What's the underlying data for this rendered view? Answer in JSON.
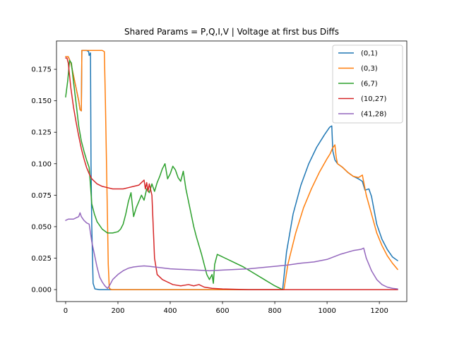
{
  "chart_data": {
    "type": "line",
    "title": "Shared Params =  P,Q,I,V | Voltage at first bus Diffs",
    "xlabel": "",
    "ylabel": "",
    "xlim": [
      -35,
      1305
    ],
    "ylim": [
      -0.0095,
      0.1975
    ],
    "xticks": [
      0,
      200,
      400,
      600,
      800,
      1000,
      1200
    ],
    "xtick_labels": [
      "0",
      "200",
      "400",
      "600",
      "800",
      "1000",
      "1200"
    ],
    "yticks": [
      0.0,
      0.025,
      0.05,
      0.075,
      0.1,
      0.125,
      0.15,
      0.175
    ],
    "ytick_labels": [
      "0.000",
      "0.025",
      "0.050",
      "0.075",
      "0.100",
      "0.125",
      "0.150",
      "0.175"
    ],
    "grid": false,
    "legend_position": "upper right",
    "series": [
      {
        "name": "(0,1)",
        "color": "#1f77b4",
        "points": [
          [
            0,
            0.185
          ],
          [
            10,
            0.185
          ],
          [
            20,
            0.18
          ],
          [
            30,
            0.17
          ],
          [
            40,
            0.16
          ],
          [
            50,
            0.15
          ],
          [
            55,
            0.143
          ],
          [
            60,
            0.142
          ],
          [
            62,
            0.19
          ],
          [
            70,
            0.19
          ],
          [
            80,
            0.19
          ],
          [
            88,
            0.189
          ],
          [
            90,
            0.186
          ],
          [
            95,
            0.188
          ],
          [
            97,
            0.1
          ],
          [
            100,
            0.05
          ],
          [
            105,
            0.005
          ],
          [
            112,
            0.0005
          ],
          [
            130,
            0.0
          ],
          [
            200,
            0.0
          ],
          [
            400,
            0.0
          ],
          [
            600,
            0.0
          ],
          [
            800,
            0.0
          ],
          [
            830,
            0.0
          ],
          [
            845,
            0.03
          ],
          [
            870,
            0.06
          ],
          [
            900,
            0.083
          ],
          [
            930,
            0.1
          ],
          [
            960,
            0.113
          ],
          [
            990,
            0.123
          ],
          [
            1000,
            0.126
          ],
          [
            1010,
            0.129
          ],
          [
            1018,
            0.13
          ],
          [
            1022,
            0.11
          ],
          [
            1030,
            0.103
          ],
          [
            1040,
            0.1
          ],
          [
            1060,
            0.097
          ],
          [
            1080,
            0.093
          ],
          [
            1100,
            0.09
          ],
          [
            1120,
            0.088
          ],
          [
            1135,
            0.086
          ],
          [
            1145,
            0.079
          ],
          [
            1160,
            0.08
          ],
          [
            1170,
            0.074
          ],
          [
            1190,
            0.052
          ],
          [
            1210,
            0.04
          ],
          [
            1230,
            0.032
          ],
          [
            1250,
            0.026
          ],
          [
            1270,
            0.023
          ]
        ]
      },
      {
        "name": "(0,3)",
        "color": "#ff7f0e",
        "points": [
          [
            0,
            0.185
          ],
          [
            10,
            0.185
          ],
          [
            20,
            0.18
          ],
          [
            30,
            0.17
          ],
          [
            40,
            0.16
          ],
          [
            50,
            0.15
          ],
          [
            55,
            0.143
          ],
          [
            60,
            0.142
          ],
          [
            62,
            0.19
          ],
          [
            80,
            0.19
          ],
          [
            100,
            0.19
          ],
          [
            120,
            0.19
          ],
          [
            140,
            0.19
          ],
          [
            148,
            0.189
          ],
          [
            152,
            0.15
          ],
          [
            158,
            0.08
          ],
          [
            163,
            0.02
          ],
          [
            167,
            0.001
          ],
          [
            175,
            0.0
          ],
          [
            300,
            0.0
          ],
          [
            500,
            0.0
          ],
          [
            700,
            0.0
          ],
          [
            800,
            0.0
          ],
          [
            835,
            0.0
          ],
          [
            850,
            0.02
          ],
          [
            880,
            0.045
          ],
          [
            910,
            0.065
          ],
          [
            940,
            0.08
          ],
          [
            970,
            0.093
          ],
          [
            1000,
            0.104
          ],
          [
            1012,
            0.108
          ],
          [
            1020,
            0.112
          ],
          [
            1030,
            0.115
          ],
          [
            1035,
            0.105
          ],
          [
            1040,
            0.1
          ],
          [
            1060,
            0.097
          ],
          [
            1080,
            0.093
          ],
          [
            1100,
            0.09
          ],
          [
            1120,
            0.089
          ],
          [
            1135,
            0.091
          ],
          [
            1150,
            0.075
          ],
          [
            1170,
            0.06
          ],
          [
            1190,
            0.045
          ],
          [
            1210,
            0.035
          ],
          [
            1230,
            0.027
          ],
          [
            1250,
            0.021
          ],
          [
            1270,
            0.016
          ]
        ]
      },
      {
        "name": "(6,7)",
        "color": "#2ca02c",
        "points": [
          [
            0,
            0.153
          ],
          [
            8,
            0.166
          ],
          [
            15,
            0.182
          ],
          [
            22,
            0.18
          ],
          [
            30,
            0.165
          ],
          [
            40,
            0.148
          ],
          [
            50,
            0.13
          ],
          [
            60,
            0.118
          ],
          [
            70,
            0.11
          ],
          [
            80,
            0.103
          ],
          [
            90,
            0.097
          ],
          [
            100,
            0.068
          ],
          [
            110,
            0.06
          ],
          [
            120,
            0.054
          ],
          [
            140,
            0.048
          ],
          [
            160,
            0.045
          ],
          [
            180,
            0.045
          ],
          [
            200,
            0.046
          ],
          [
            210,
            0.048
          ],
          [
            220,
            0.052
          ],
          [
            230,
            0.06
          ],
          [
            240,
            0.07
          ],
          [
            250,
            0.077
          ],
          [
            260,
            0.058
          ],
          [
            270,
            0.065
          ],
          [
            280,
            0.07
          ],
          [
            290,
            0.075
          ],
          [
            300,
            0.071
          ],
          [
            310,
            0.08
          ],
          [
            320,
            0.077
          ],
          [
            330,
            0.084
          ],
          [
            340,
            0.078
          ],
          [
            350,
            0.085
          ],
          [
            360,
            0.09
          ],
          [
            370,
            0.096
          ],
          [
            380,
            0.1
          ],
          [
            390,
            0.088
          ],
          [
            400,
            0.092
          ],
          [
            410,
            0.098
          ],
          [
            420,
            0.095
          ],
          [
            430,
            0.089
          ],
          [
            440,
            0.086
          ],
          [
            450,
            0.094
          ],
          [
            460,
            0.08
          ],
          [
            470,
            0.07
          ],
          [
            480,
            0.06
          ],
          [
            490,
            0.05
          ],
          [
            500,
            0.042
          ],
          [
            510,
            0.035
          ],
          [
            520,
            0.028
          ],
          [
            530,
            0.02
          ],
          [
            540,
            0.012
          ],
          [
            550,
            0.008
          ],
          [
            560,
            0.012
          ],
          [
            565,
            0.005
          ],
          [
            570,
            0.02
          ],
          [
            580,
            0.028
          ],
          [
            590,
            0.027
          ],
          [
            610,
            0.025
          ],
          [
            640,
            0.022
          ],
          [
            680,
            0.018
          ],
          [
            720,
            0.013
          ],
          [
            760,
            0.008
          ],
          [
            800,
            0.003
          ],
          [
            830,
            0.0
          ]
        ]
      },
      {
        "name": "(10,27)",
        "color": "#d62728",
        "points": [
          [
            0,
            0.184
          ],
          [
            5,
            0.184
          ],
          [
            10,
            0.18
          ],
          [
            20,
            0.16
          ],
          [
            30,
            0.145
          ],
          [
            40,
            0.133
          ],
          [
            50,
            0.122
          ],
          [
            60,
            0.112
          ],
          [
            70,
            0.104
          ],
          [
            80,
            0.097
          ],
          [
            90,
            0.092
          ],
          [
            100,
            0.088
          ],
          [
            110,
            0.086
          ],
          [
            120,
            0.084
          ],
          [
            140,
            0.082
          ],
          [
            160,
            0.081
          ],
          [
            180,
            0.08
          ],
          [
            200,
            0.08
          ],
          [
            220,
            0.08
          ],
          [
            240,
            0.081
          ],
          [
            260,
            0.082
          ],
          [
            280,
            0.083
          ],
          [
            290,
            0.085
          ],
          [
            300,
            0.087
          ],
          [
            305,
            0.08
          ],
          [
            310,
            0.085
          ],
          [
            315,
            0.078
          ],
          [
            320,
            0.084
          ],
          [
            330,
            0.075
          ],
          [
            335,
            0.05
          ],
          [
            340,
            0.025
          ],
          [
            350,
            0.012
          ],
          [
            370,
            0.008
          ],
          [
            390,
            0.006
          ],
          [
            410,
            0.004
          ],
          [
            440,
            0.003
          ],
          [
            470,
            0.004
          ],
          [
            490,
            0.003
          ],
          [
            510,
            0.004
          ],
          [
            530,
            0.002
          ],
          [
            560,
            0.001
          ],
          [
            600,
            0.0005
          ],
          [
            700,
            0.0
          ],
          [
            800,
            0.0
          ],
          [
            900,
            0.0
          ],
          [
            1000,
            0.0
          ],
          [
            1100,
            0.0
          ],
          [
            1200,
            0.0
          ],
          [
            1270,
            0.0
          ]
        ]
      },
      {
        "name": "(41,28)",
        "color": "#9467bd",
        "points": [
          [
            0,
            0.055
          ],
          [
            10,
            0.056
          ],
          [
            20,
            0.056
          ],
          [
            30,
            0.056
          ],
          [
            40,
            0.057
          ],
          [
            50,
            0.058
          ],
          [
            55,
            0.061
          ],
          [
            60,
            0.058
          ],
          [
            70,
            0.055
          ],
          [
            80,
            0.053
          ],
          [
            90,
            0.052
          ],
          [
            100,
            0.038
          ],
          [
            110,
            0.028
          ],
          [
            120,
            0.018
          ],
          [
            130,
            0.01
          ],
          [
            140,
            0.006
          ],
          [
            150,
            0.003
          ],
          [
            160,
            0.001
          ],
          [
            170,
            0.004
          ],
          [
            180,
            0.008
          ],
          [
            200,
            0.012
          ],
          [
            220,
            0.015
          ],
          [
            240,
            0.017
          ],
          [
            260,
            0.018
          ],
          [
            280,
            0.0185
          ],
          [
            300,
            0.0188
          ],
          [
            320,
            0.0185
          ],
          [
            340,
            0.018
          ],
          [
            360,
            0.0175
          ],
          [
            380,
            0.017
          ],
          [
            400,
            0.0165
          ],
          [
            450,
            0.016
          ],
          [
            500,
            0.0155
          ],
          [
            550,
            0.015
          ],
          [
            600,
            0.0155
          ],
          [
            650,
            0.016
          ],
          [
            700,
            0.0165
          ],
          [
            750,
            0.0175
          ],
          [
            800,
            0.0185
          ],
          [
            850,
            0.0195
          ],
          [
            900,
            0.021
          ],
          [
            950,
            0.022
          ],
          [
            1000,
            0.024
          ],
          [
            1050,
            0.028
          ],
          [
            1100,
            0.031
          ],
          [
            1130,
            0.032
          ],
          [
            1140,
            0.033
          ],
          [
            1150,
            0.025
          ],
          [
            1170,
            0.015
          ],
          [
            1190,
            0.008
          ],
          [
            1210,
            0.004
          ],
          [
            1230,
            0.002
          ],
          [
            1250,
            0.001
          ],
          [
            1270,
            0.0005
          ]
        ]
      }
    ]
  }
}
